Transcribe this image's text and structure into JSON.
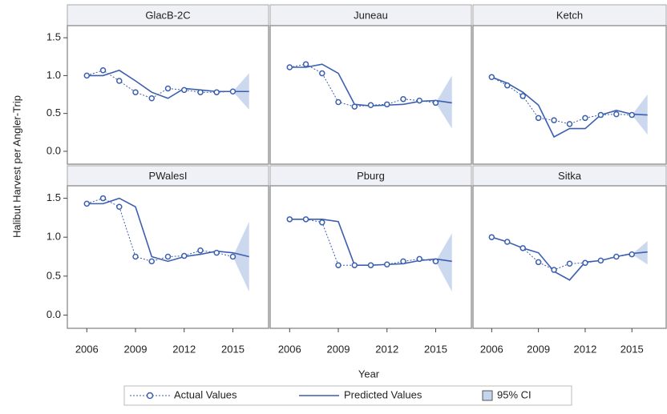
{
  "chart_data": {
    "type": "line",
    "ylabel": "Halibut Harvest per Angler-Trip",
    "xlabel": "Year",
    "x": [
      2006,
      2007,
      2008,
      2009,
      2010,
      2011,
      2012,
      2013,
      2014,
      2015,
      2016
    ],
    "xlim": [
      2004.8,
      2017.2
    ],
    "xticks": [
      2006,
      2009,
      2012,
      2015
    ],
    "ylim": [
      -0.17,
      1.66
    ],
    "yticks": [
      {
        "value": 0,
        "label": "0.0"
      },
      0.5,
      {
        "value": 1,
        "label": "1.0"
      },
      1.5
    ],
    "series_styles": [
      {
        "name": "Actual Values",
        "color": "#3b5fb0"
      },
      {
        "name": "Predicted Values",
        "color": "#3b5fb0"
      },
      {
        "name": "95% CI",
        "color": "#c5d4ec"
      }
    ],
    "panels": [
      {
        "title": "GlacB-2C",
        "actual": [
          1.0,
          1.07,
          0.93,
          0.78,
          0.7,
          0.83,
          0.81,
          0.78,
          0.78,
          0.79,
          null
        ],
        "predicted": [
          1.0,
          1.0,
          1.07,
          0.93,
          0.78,
          0.7,
          0.83,
          0.81,
          0.79,
          0.79,
          0.79
        ],
        "ci_lower": [
          null,
          null,
          null,
          null,
          null,
          null,
          null,
          null,
          null,
          0.79,
          0.55
        ],
        "ci_upper": [
          null,
          null,
          null,
          null,
          null,
          null,
          null,
          null,
          null,
          0.79,
          1.03
        ]
      },
      {
        "title": "Juneau",
        "actual": [
          1.11,
          1.15,
          1.03,
          0.65,
          0.59,
          0.61,
          0.62,
          0.69,
          0.67,
          0.64,
          null
        ],
        "predicted": [
          1.11,
          1.11,
          1.15,
          1.03,
          0.62,
          0.6,
          0.61,
          0.62,
          0.66,
          0.67,
          0.64
        ],
        "ci_lower": [
          null,
          null,
          null,
          null,
          null,
          null,
          null,
          null,
          null,
          0.64,
          0.3
        ],
        "ci_upper": [
          null,
          null,
          null,
          null,
          null,
          null,
          null,
          null,
          null,
          0.64,
          1.0
        ]
      },
      {
        "title": "Ketch",
        "actual": [
          0.98,
          0.87,
          0.73,
          0.44,
          0.41,
          0.36,
          0.44,
          0.48,
          0.49,
          0.48,
          null
        ],
        "predicted": [
          0.98,
          0.9,
          0.78,
          0.61,
          0.19,
          0.3,
          0.3,
          0.48,
          0.54,
          0.49,
          0.48
        ],
        "ci_lower": [
          null,
          null,
          null,
          null,
          null,
          null,
          null,
          null,
          null,
          0.48,
          0.22
        ],
        "ci_upper": [
          null,
          null,
          null,
          null,
          null,
          null,
          null,
          null,
          null,
          0.48,
          0.75
        ]
      },
      {
        "title": "PWalesI",
        "actual": [
          1.43,
          1.5,
          1.39,
          0.75,
          0.69,
          0.75,
          0.76,
          0.83,
          0.8,
          0.75,
          null
        ],
        "predicted": [
          1.43,
          1.43,
          1.5,
          1.39,
          0.75,
          0.69,
          0.75,
          0.78,
          0.82,
          0.8,
          0.75
        ],
        "ci_lower": [
          null,
          null,
          null,
          null,
          null,
          null,
          null,
          null,
          null,
          0.75,
          0.3
        ],
        "ci_upper": [
          null,
          null,
          null,
          null,
          null,
          null,
          null,
          null,
          null,
          0.75,
          1.2
        ]
      },
      {
        "title": "Pburg",
        "actual": [
          1.23,
          1.23,
          1.19,
          0.64,
          0.64,
          0.64,
          0.65,
          0.69,
          0.72,
          0.69,
          null
        ],
        "predicted": [
          1.23,
          1.23,
          1.23,
          1.2,
          0.64,
          0.64,
          0.65,
          0.66,
          0.7,
          0.72,
          0.69
        ],
        "ci_lower": [
          null,
          null,
          null,
          null,
          null,
          null,
          null,
          null,
          null,
          0.69,
          0.3
        ],
        "ci_upper": [
          null,
          null,
          null,
          null,
          null,
          null,
          null,
          null,
          null,
          0.69,
          1.05
        ]
      },
      {
        "title": "Sitka",
        "actual": [
          1.0,
          0.94,
          0.86,
          0.68,
          0.58,
          0.66,
          0.67,
          0.7,
          0.75,
          0.78,
          null
        ],
        "predicted": [
          1.0,
          0.94,
          0.86,
          0.8,
          0.56,
          0.45,
          0.68,
          0.7,
          0.75,
          0.79,
          0.81
        ],
        "ci_lower": [
          null,
          null,
          null,
          null,
          null,
          null,
          null,
          null,
          null,
          0.78,
          0.65
        ],
        "ci_upper": [
          null,
          null,
          null,
          null,
          null,
          null,
          null,
          null,
          null,
          0.78,
          0.95
        ]
      }
    ]
  }
}
